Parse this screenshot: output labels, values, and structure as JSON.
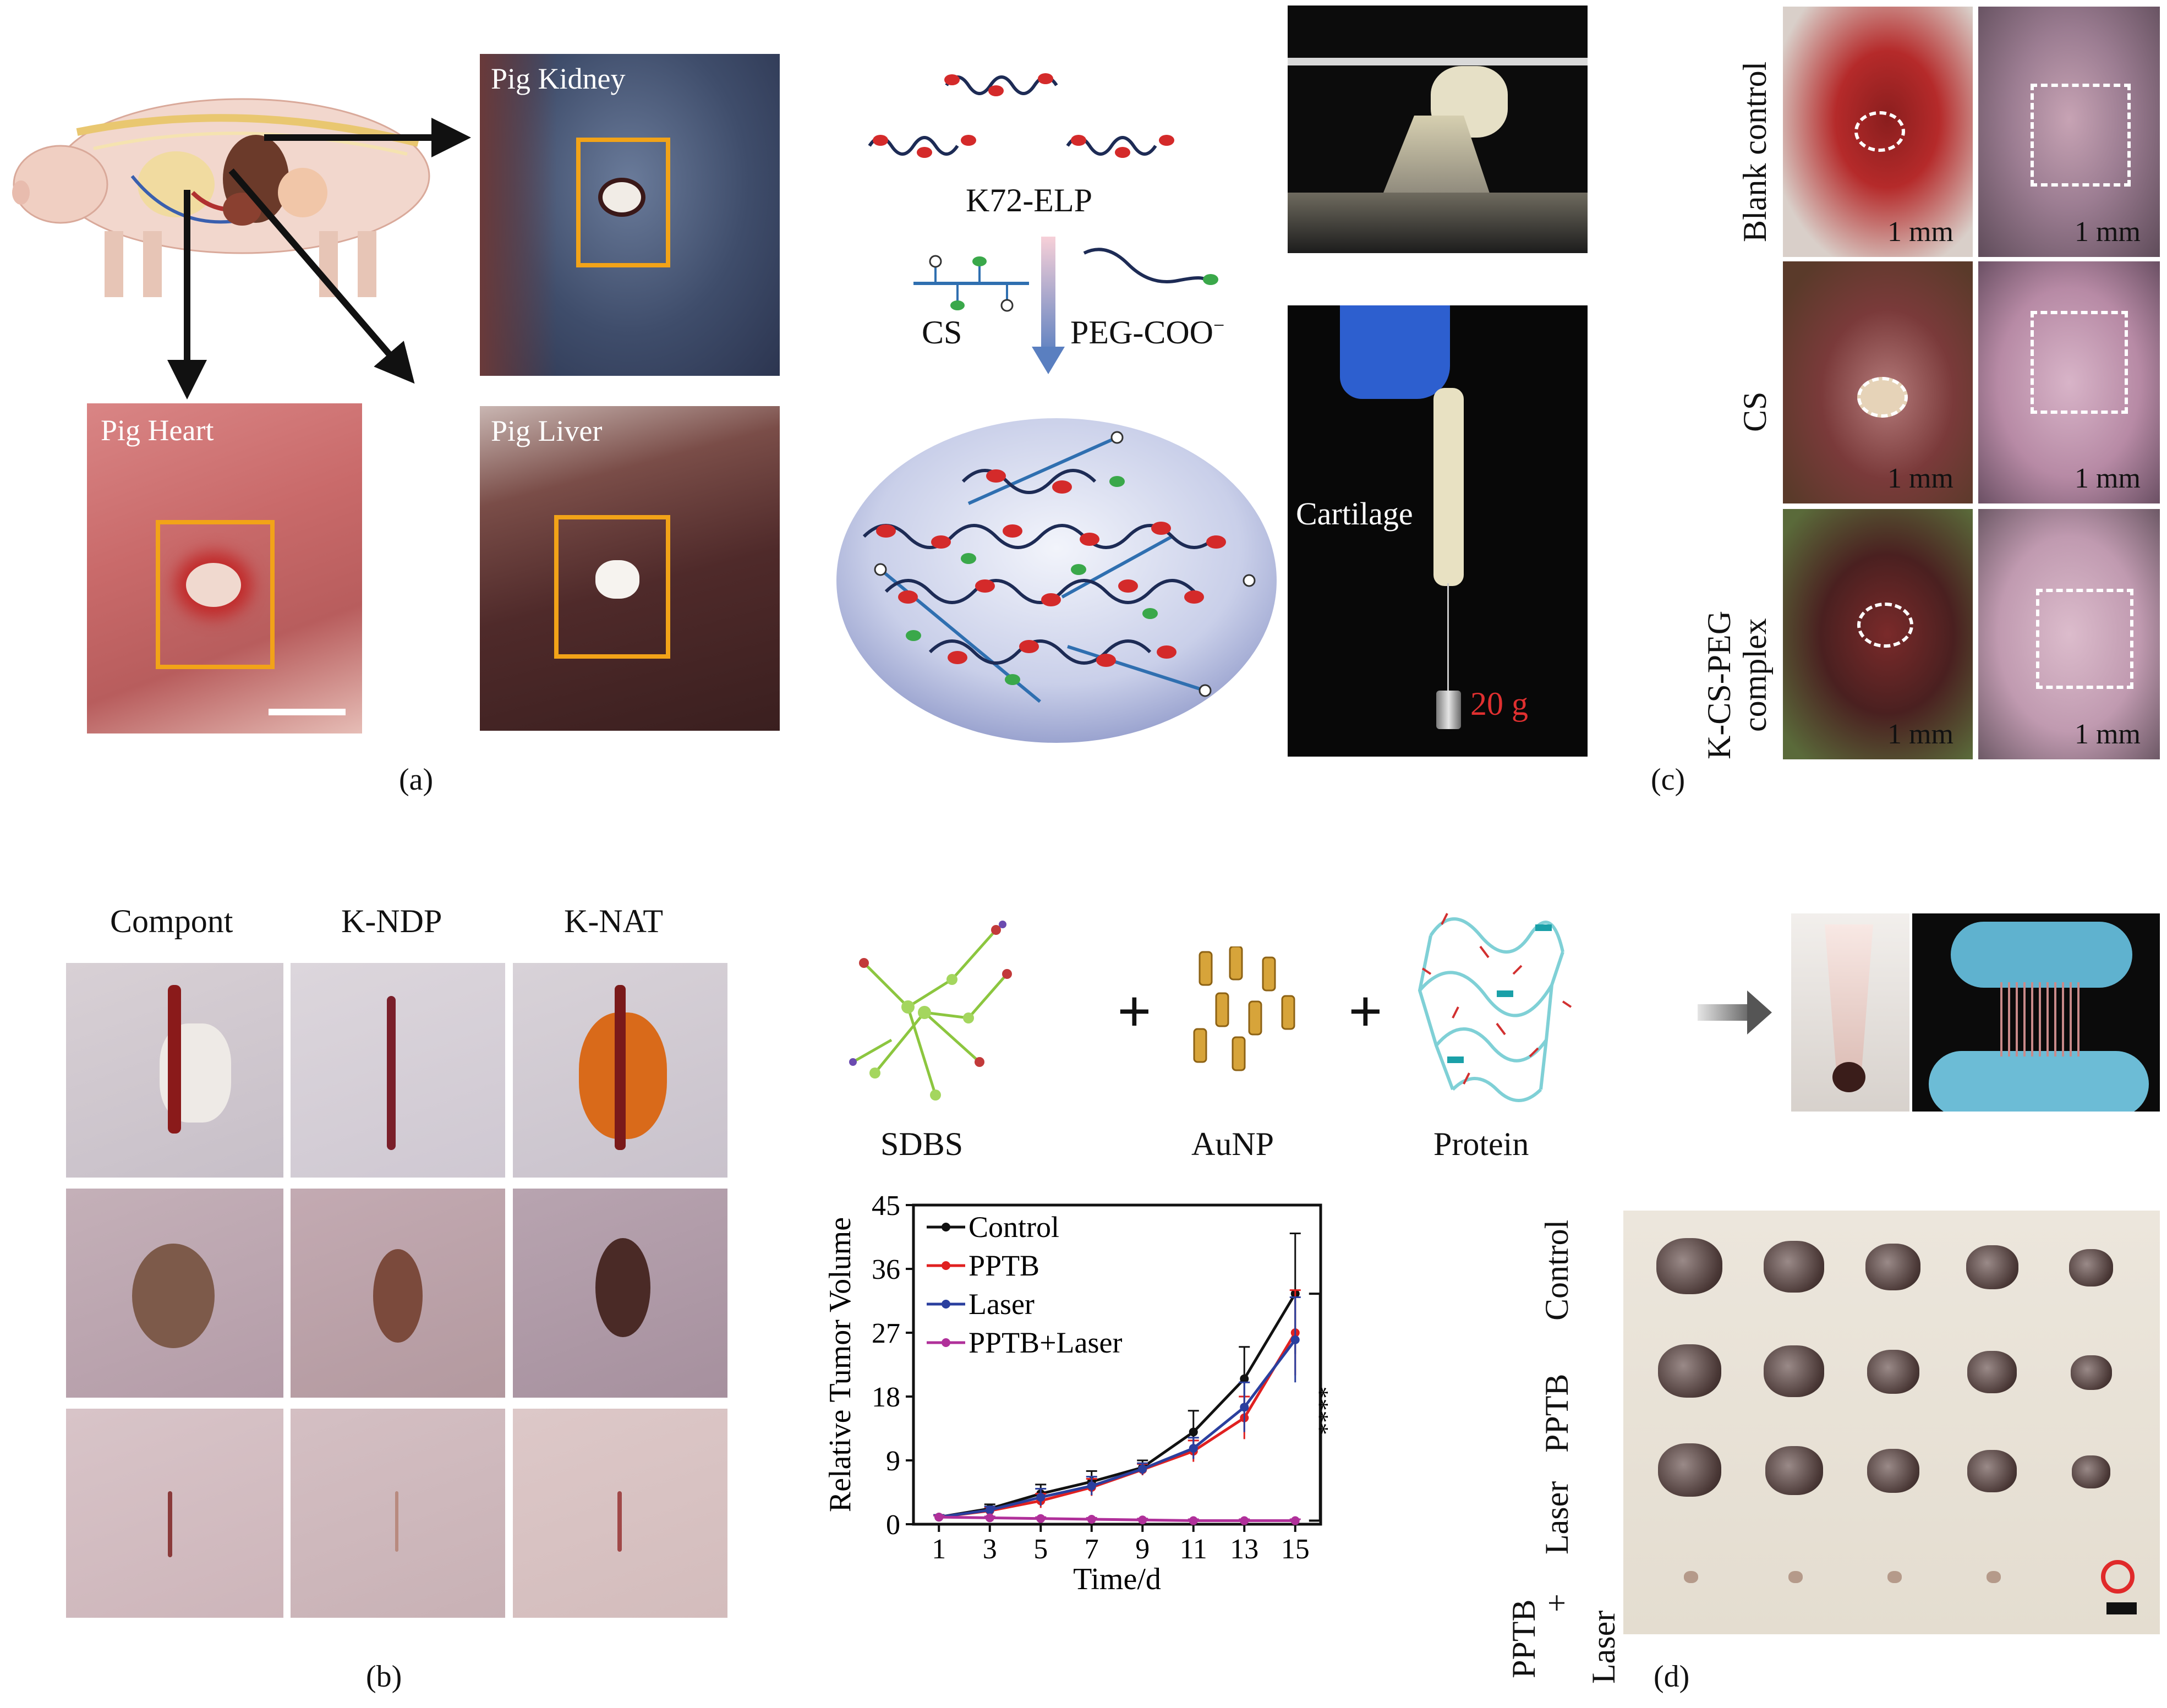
{
  "panel_a": {
    "label": "(a)",
    "kidney": "Pig Kidney",
    "heart": "Pig Heart",
    "liver": "Pig Liver"
  },
  "panel_top_mid": {
    "k72": "K72-ELP",
    "cs": "CS",
    "peg": "PEG-COO",
    "peg_sup": "−",
    "cartilage": "Cartilage",
    "weight": "20 g"
  },
  "panel_c": {
    "label": "(c)",
    "rows": [
      "Blank control",
      "CS",
      "K-CS-PEG",
      "complex"
    ],
    "scale": "1 mm"
  },
  "panel_b": {
    "label": "(b)",
    "cols": [
      "Compont",
      "K-NDP",
      "K-NAT"
    ]
  },
  "panel_d": {
    "label": "(d)",
    "molecules": [
      "SDBS",
      "AuNP",
      "Protein"
    ],
    "plus": "+",
    "rows": [
      "Control",
      "PPTB",
      "Laser",
      "PPTB",
      "+",
      "Laser"
    ]
  },
  "chart_data": {
    "type": "line",
    "xlabel": "Time/d",
    "ylabel": "Relative Tumor Volume",
    "x": [
      1,
      3,
      5,
      7,
      9,
      11,
      13,
      15
    ],
    "ylim": [
      0,
      45
    ],
    "yticks": [
      0,
      9,
      18,
      27,
      36,
      45
    ],
    "significance": "****",
    "series": [
      {
        "name": "Control",
        "color": "#111111",
        "values": [
          1,
          2.2,
          4.3,
          6,
          8,
          13,
          20.5,
          32.5
        ],
        "errors": [
          0.3,
          0.6,
          1.3,
          1.5,
          1,
          3,
          4.5,
          8.5
        ]
      },
      {
        "name": "PPTB",
        "color": "#e02020",
        "values": [
          1,
          1.9,
          3.3,
          5.2,
          7.7,
          10.3,
          15,
          27
        ],
        "errors": [
          0.3,
          0.5,
          1,
          1.2,
          0.8,
          1.5,
          3,
          6
        ]
      },
      {
        "name": "Laser",
        "color": "#2a3f9e",
        "values": [
          1,
          2,
          3.8,
          5.4,
          7.8,
          10.7,
          16.5,
          26
        ],
        "errors": [
          0.3,
          0.5,
          1.2,
          1.3,
          0.8,
          1.5,
          3.5,
          6
        ]
      },
      {
        "name": "PPTB+Laser",
        "color": "#b0309a",
        "values": [
          1,
          0.9,
          0.8,
          0.7,
          0.6,
          0.5,
          0.5,
          0.5
        ],
        "errors": [
          0.2,
          0.2,
          0.2,
          0.2,
          0.2,
          0.2,
          0.2,
          0.2
        ]
      }
    ]
  }
}
